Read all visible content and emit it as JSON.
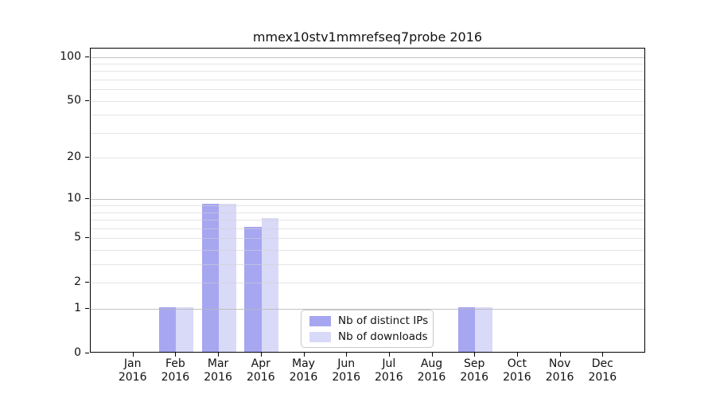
{
  "chart_data": {
    "type": "bar",
    "title": "mmex10stv1mmrefseq7probe 2016",
    "categories": [
      "Jan",
      "Feb",
      "Mar",
      "Apr",
      "May",
      "Jun",
      "Jul",
      "Aug",
      "Sep",
      "Oct",
      "Nov",
      "Dec"
    ],
    "year": "2016",
    "series": [
      {
        "name": "Nb of distinct IPs",
        "color": "#a6a6f1",
        "values": [
          0,
          1,
          9,
          6,
          0,
          0,
          0,
          0,
          1,
          0,
          0,
          0
        ]
      },
      {
        "name": "Nb of downloads",
        "color": "#d9d9f8",
        "values": [
          0,
          1,
          9,
          7,
          0,
          0,
          0,
          0,
          1,
          0,
          0,
          0
        ]
      }
    ],
    "y_scale": "log1p",
    "ylim": [
      0,
      113
    ],
    "y_ticks": [
      0,
      1,
      2,
      5,
      10,
      20,
      50,
      100
    ],
    "major_gridlines": [
      1,
      10,
      100
    ],
    "minor_gridlines": [
      2,
      3,
      4,
      5,
      6,
      7,
      8,
      9,
      20,
      30,
      40,
      50,
      60,
      70,
      80,
      90
    ],
    "legend_position": "lower center",
    "grid": "on"
  },
  "colors": {
    "background": "#ffffff",
    "axis_spine": "#000000",
    "major_grid": "#c6c6c6",
    "minor_grid": "#ececec",
    "text": "#111111"
  }
}
